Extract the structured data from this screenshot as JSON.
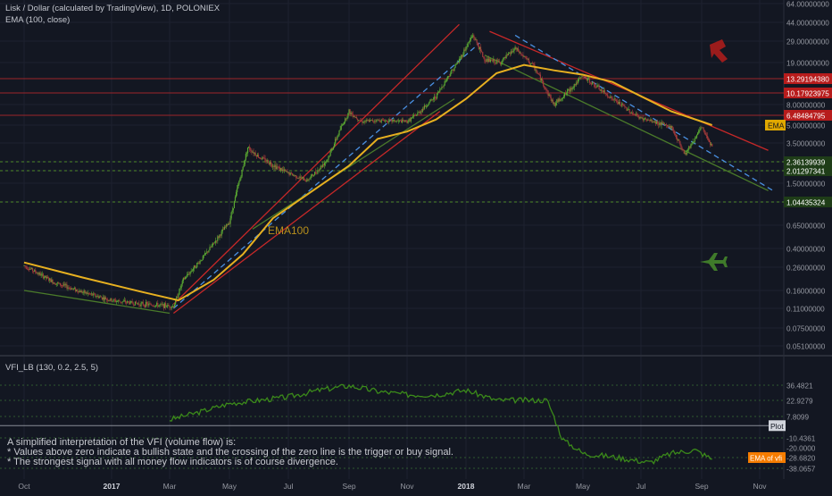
{
  "header": {
    "title": "Lisk / Dollar (calculated by TradingView), 1D, POLONIEX",
    "indicator": "EMA (100, close)"
  },
  "vfi_panel": {
    "title": "VFI_LB (130, 0.2, 2.5, 5)",
    "note_lines": [
      "A simplified interpretation of the VFI (volume flow) is:",
      "* Values above zero indicate a bullish state and the crossing of the zero line is the trigger or buy signal.",
      "* The strongest signal with all money flow indicators is of course divergence."
    ],
    "plot_tag": "Plot",
    "ema_tag": "EMA of vfi"
  },
  "annotations": {
    "ema100_label": "EMA100",
    "ema_tag": "EMA",
    "bear_icon": "bear-arrow-icon",
    "bull_icon": "plane-icon"
  },
  "colors": {
    "background": "#131722",
    "candle_up": "#5aa832",
    "candle_down": "#a33a3a",
    "ema": "#e7b020",
    "trend_red": "#c62828",
    "trend_blue": "#4a90e2",
    "trend_green": "#4f7a2a",
    "vfi": "#3b8a1a"
  },
  "chart_data": [
    {
      "type": "candlestick",
      "title": "Lisk / Dollar (calculated by TradingView), 1D, POLONIEX",
      "y_scale": "log",
      "x_ticks": [
        "Oct",
        "2017",
        "Mar",
        "May",
        "Jul",
        "Sep",
        "Nov",
        "2018",
        "Mar",
        "May",
        "Jul",
        "Sep",
        "Nov"
      ],
      "y_ticks": [
        "64.00000000",
        "44.00000000",
        "29.00000000",
        "19.00000000",
        "13.29194380",
        "10.17923975",
        "8.00000000",
        "6.48484795",
        "5.00000000",
        "3.50000000",
        "2.36139939",
        "2.01297341",
        "1.50000000",
        "1.04435324",
        "0.65000000",
        "0.40000000",
        "0.26000000",
        "0.16000000",
        "0.11000000",
        "0.07500000",
        "0.05100000"
      ],
      "horizontal_levels": {
        "red": [
          13.2919438,
          10.17923975,
          6.48484795
        ],
        "green": [
          2.36139939,
          2.01297341,
          1.04435324
        ]
      },
      "price_path": [
        [
          "2016-10-01",
          0.27
        ],
        [
          "2016-11-01",
          0.19
        ],
        [
          "2016-12-01",
          0.155
        ],
        [
          "2017-01-01",
          0.13
        ],
        [
          "2017-02-01",
          0.12
        ],
        [
          "2017-03-05",
          0.115
        ],
        [
          "2017-03-15",
          0.2
        ],
        [
          "2017-04-01",
          0.3
        ],
        [
          "2017-05-01",
          0.7
        ],
        [
          "2017-05-20",
          3.2
        ],
        [
          "2017-06-01",
          2.6
        ],
        [
          "2017-07-01",
          1.9
        ],
        [
          "2017-07-20",
          1.6
        ],
        [
          "2017-08-10",
          2.5
        ],
        [
          "2017-09-01",
          7.0
        ],
        [
          "2017-09-15",
          5.5
        ],
        [
          "2017-10-01",
          5.7
        ],
        [
          "2017-11-01",
          5.5
        ],
        [
          "2017-12-01",
          9.5
        ],
        [
          "2017-12-25",
          20
        ],
        [
          "2018-01-08",
          33
        ],
        [
          "2018-01-20",
          20
        ],
        [
          "2018-02-05",
          19
        ],
        [
          "2018-02-20",
          25
        ],
        [
          "2018-03-10",
          18
        ],
        [
          "2018-04-01",
          8
        ],
        [
          "2018-05-01",
          14
        ],
        [
          "2018-06-01",
          9
        ],
        [
          "2018-07-01",
          6
        ],
        [
          "2018-08-01",
          4.8
        ],
        [
          "2018-08-15",
          2.8
        ],
        [
          "2018-09-01",
          4.8
        ],
        [
          "2018-09-12",
          3.3
        ]
      ],
      "ema100": [
        [
          "2016-10-01",
          0.29
        ],
        [
          "2016-12-01",
          0.21
        ],
        [
          "2017-02-01",
          0.155
        ],
        [
          "2017-03-10",
          0.13
        ],
        [
          "2017-04-15",
          0.2
        ],
        [
          "2017-05-15",
          0.35
        ],
        [
          "2017-06-15",
          0.75
        ],
        [
          "2017-07-20",
          1.2
        ],
        [
          "2017-09-01",
          2.2
        ],
        [
          "2017-10-01",
          3.8
        ],
        [
          "2017-11-01",
          4.4
        ],
        [
          "2017-12-01",
          5.8
        ],
        [
          "2018-01-01",
          9
        ],
        [
          "2018-02-01",
          15
        ],
        [
          "2018-03-01",
          18
        ],
        [
          "2018-04-01",
          16
        ],
        [
          "2018-05-01",
          14.5
        ],
        [
          "2018-06-01",
          12.5
        ],
        [
          "2018-07-01",
          9.5
        ],
        [
          "2018-08-01",
          7
        ],
        [
          "2018-09-01",
          5.5
        ],
        [
          "2018-09-12",
          5.0
        ]
      ]
    },
    {
      "type": "line",
      "title": "VFI_LB (130, 0.2, 2.5, 5)",
      "y_ticks": [
        "36.4821",
        "22.9279",
        "7.8099",
        "-10.4361",
        "-20.0000",
        "-28.6820",
        "-38.0657"
      ],
      "series": [
        {
          "name": "",
          "values": [
            [
              "2017-03-01",
              5
            ],
            [
              "2017-04-01",
              12
            ],
            [
              "2017-05-01",
              20
            ],
            [
              "2017-06-01",
              23
            ],
            [
              "2017-07-01",
              26
            ],
            [
              "2017-08-01",
              32
            ],
            [
              "2017-09-01",
              36
            ],
            [
              "2017-10-01",
              31
            ],
            [
              "2017-11-01",
              28
            ],
            [
              "2017-12-01",
              28
            ],
            [
              "2018-01-01",
              32
            ],
            [
              "2018-02-01",
              23
            ],
            [
              "2018-03-01",
              23
            ],
            [
              "2018-03-25",
              23
            ],
            [
              "2018-04-10",
              -12
            ],
            [
              "2018-05-01",
              -25
            ],
            [
              "2018-06-01",
              -28
            ],
            [
              "2018-07-10",
              -33
            ],
            [
              "2018-08-01",
              -25
            ],
            [
              "2018-08-25",
              -22
            ],
            [
              "2018-09-12",
              -30
            ]
          ]
        }
      ]
    }
  ]
}
